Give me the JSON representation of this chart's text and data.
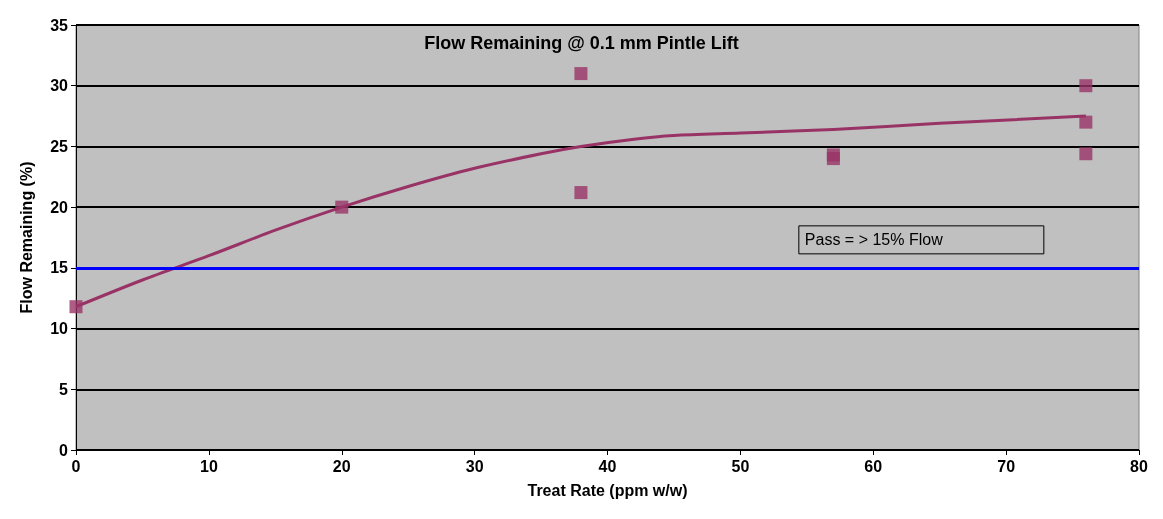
{
  "chart_data": {
    "type": "scatter",
    "title": "Flow Remaining @ 0.1 mm Pintle Lift",
    "xlabel": "Treat Rate (ppm w/w)",
    "ylabel": "Flow Remaining (%)",
    "series": [
      {
        "color": "#993366",
        "marker": "square",
        "x": [
          0,
          20,
          38,
          38,
          57,
          57,
          76,
          76,
          76
        ],
        "values": [
          11.8,
          20,
          31,
          21.2,
          24.3,
          24,
          30,
          27,
          24.4
        ]
      },
      {
        "type": "line",
        "color": "#993366",
        "marker": "none",
        "x": [
          0,
          5,
          10,
          15,
          20,
          25,
          30,
          35,
          38,
          42,
          45,
          50,
          57,
          65,
          76
        ],
        "values": [
          11.8,
          14,
          16,
          18.1,
          20,
          21.7,
          23.2,
          24.4,
          25,
          25.6,
          25.9,
          26.1,
          26.4,
          26.9,
          27.5
        ]
      }
    ],
    "xlim": [
      0,
      80
    ],
    "xticks": [
      0,
      10,
      20,
      30,
      40,
      50,
      60,
      70,
      80
    ],
    "ylim": [
      0,
      35
    ],
    "yticks": [
      0,
      5,
      10,
      15,
      20,
      25,
      30,
      35
    ],
    "grid": "y",
    "ref_lines": [
      {
        "axis": "y",
        "value": 15,
        "label": "Pass = > 15% Flow",
        "color": "#0000ff"
      }
    ]
  }
}
